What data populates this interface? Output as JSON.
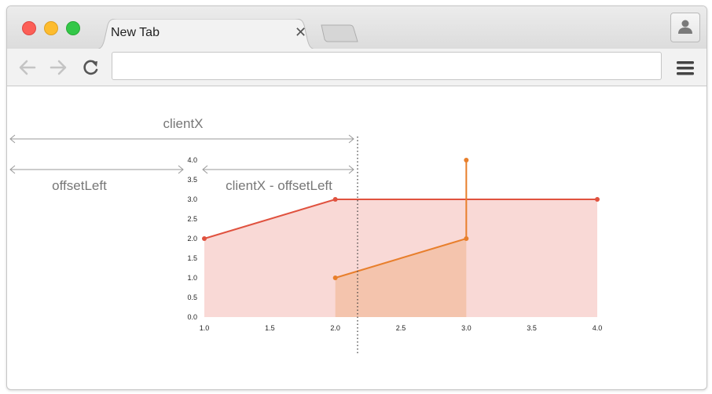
{
  "browser": {
    "tab": {
      "title": "New Tab",
      "close_glyph": "✕"
    },
    "toolbar": {
      "back_icon": "arrow-left-icon",
      "forward_icon": "arrow-right-icon",
      "reload_icon": "reload-icon",
      "address_value": "",
      "menu_icon": "hamburger-menu-icon"
    },
    "profile_icon": "person-icon"
  },
  "annotations": {
    "client_x": "clientX",
    "offset_left": "offsetLeft",
    "difference": "clientX - offsetLeft"
  },
  "chart_data": {
    "type": "area",
    "xlim": [
      1.0,
      4.0
    ],
    "ylim": [
      0.0,
      4.0
    ],
    "x_ticks": [
      "1.0",
      "1.5",
      "2.0",
      "2.5",
      "3.0",
      "3.5",
      "4.0"
    ],
    "y_ticks": [
      "0.0",
      "0.5",
      "1.0",
      "1.5",
      "2.0",
      "2.5",
      "3.0",
      "3.5",
      "4.0"
    ],
    "grid": false,
    "series": [
      {
        "color": "#e0523f",
        "fill": "#f9d9d6",
        "points": [
          [
            1.0,
            2.0
          ],
          [
            2.0,
            3.0
          ],
          [
            4.0,
            3.0
          ]
        ]
      },
      {
        "color": "#e87f2c",
        "fill": "#f4c4ad",
        "points": [
          [
            2.0,
            1.0
          ],
          [
            3.0,
            2.0
          ],
          [
            3.0,
            4.0
          ]
        ]
      }
    ],
    "cursor_x": 2.17
  }
}
